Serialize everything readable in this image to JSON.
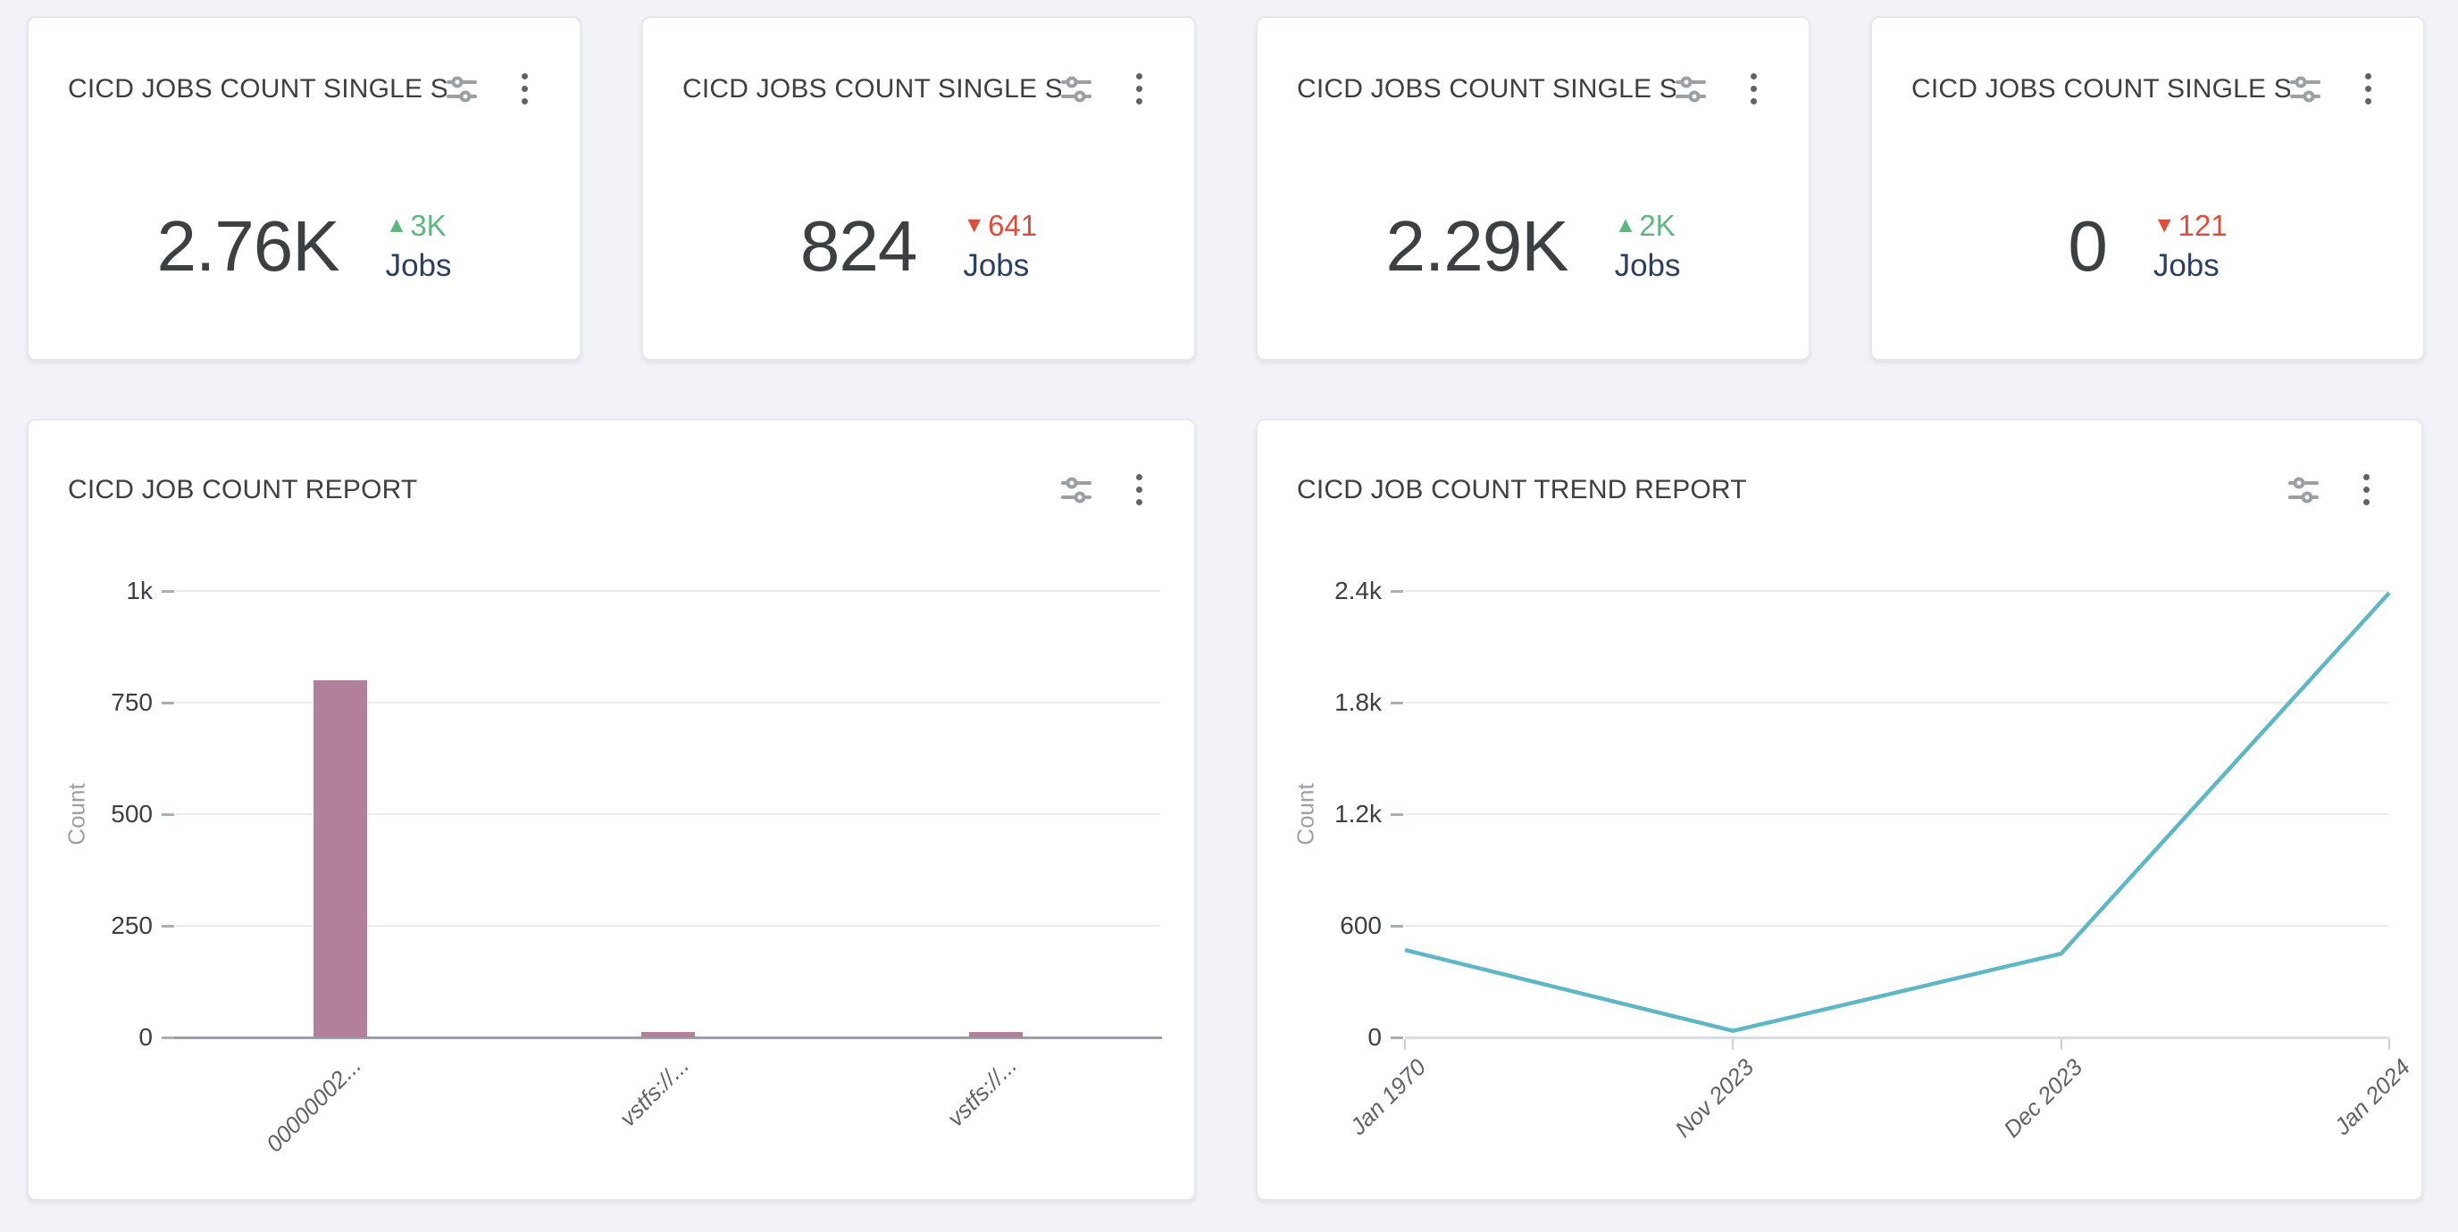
{
  "icons": {
    "up": "▲",
    "down": "▼",
    "filter": "sliders-icon",
    "menu": "kebab-menu-icon"
  },
  "theme": {
    "page_bg": "#f1f3f8",
    "card_bg": "#ffffff",
    "card_border": "#e6e8ee",
    "title_color": "#3c4043",
    "value_color": "#3c4043",
    "unit_color": "#2d3e63",
    "up_color": "#5cb87f",
    "down_color": "#d94f3d",
    "icon_gray": "#9aa0a6",
    "kebab_gray": "#5f6368",
    "grid_color": "#e9ebf0",
    "axis_dark": "#9aa0a6",
    "axis_light": "#d8dce5",
    "tick_label_color": "#3c4043",
    "cat_label_color": "#5f6368",
    "ylabel_color": "#9aa0a6",
    "bar_color": "#b3809b",
    "line_color": "#5fb6c4"
  },
  "stat_cards": [
    {
      "title": "CICD JOBS COUNT SINGLE S...",
      "value": "2.76K",
      "delta": "3K",
      "direction": "up",
      "unit": "Jobs"
    },
    {
      "title": "CICD JOBS COUNT SINGLE S...",
      "value": "824",
      "delta": "641",
      "direction": "down",
      "unit": "Jobs"
    },
    {
      "title": "CICD JOBS COUNT SINGLE S...",
      "value": "2.29K",
      "delta": "2K",
      "direction": "up",
      "unit": "Jobs"
    },
    {
      "title": "CICD JOBS COUNT SINGLE S...",
      "value": "0",
      "delta": "121",
      "direction": "down",
      "unit": "Jobs"
    }
  ],
  "chart_data": [
    {
      "type": "bar",
      "title": "CICD JOB COUNT REPORT",
      "categories": [
        "00000002...",
        "vstfs://...",
        "vstfs://..."
      ],
      "values": [
        800,
        12,
        12
      ],
      "xlabel": "",
      "ylabel": "Count",
      "yticks": [
        "1k",
        "750",
        "500",
        "250",
        "0"
      ],
      "ylim": [
        0,
        1000
      ],
      "grid": true,
      "legend": "none"
    },
    {
      "type": "line",
      "title": "CICD JOB COUNT TREND REPORT",
      "categories": [
        "Jan 1970",
        "Nov 2023",
        "Dec 2023",
        "Jan 2024"
      ],
      "values": [
        470,
        35,
        450,
        2390
      ],
      "xlabel": "",
      "ylabel": "Count",
      "yticks": [
        "2.4k",
        "1.8k",
        "1.2k",
        "600",
        "0"
      ],
      "ylim": [
        0,
        2400
      ],
      "grid": true,
      "legend": "none"
    }
  ]
}
